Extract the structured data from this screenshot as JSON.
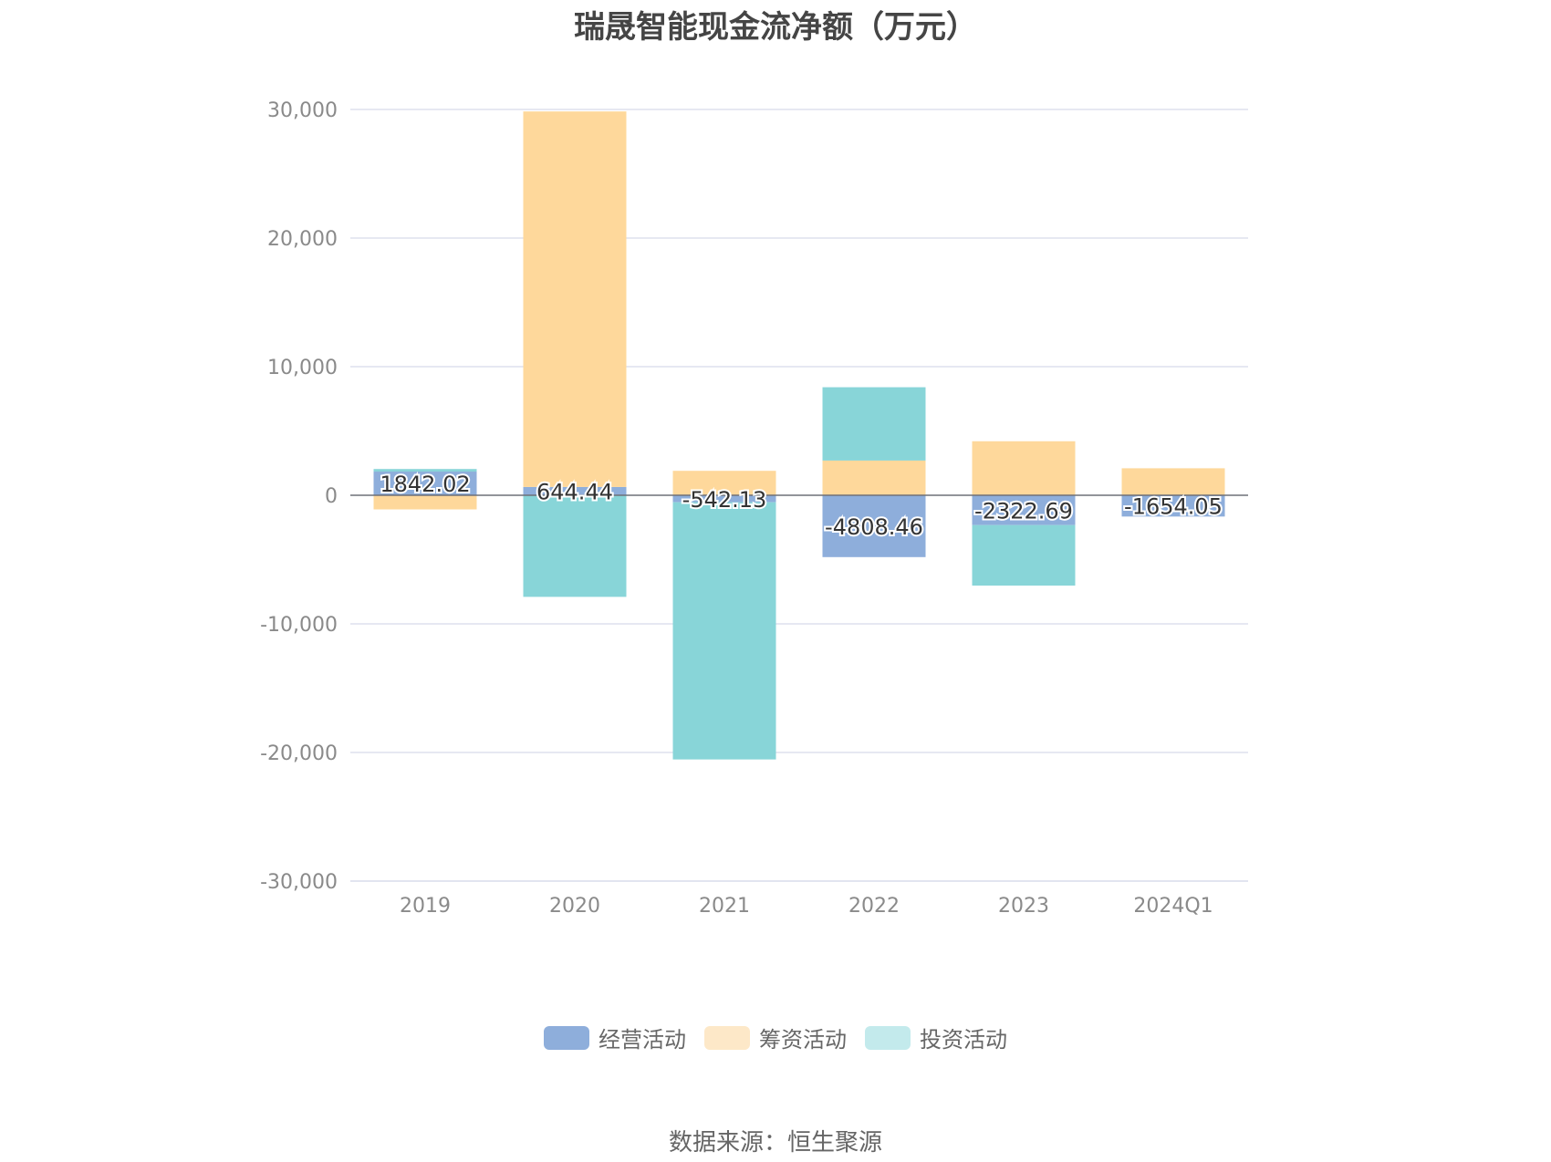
{
  "chart_data": {
    "type": "bar",
    "stacked": true,
    "title": "瑞晟智能现金流净额（万元）",
    "categories": [
      "2019",
      "2020",
      "2021",
      "2022",
      "2023",
      "2024Q1"
    ],
    "series": [
      {
        "name": "经营活动",
        "color": "#8eaedb",
        "legend_color": "#8eaedb",
        "values": [
          1842.02,
          644.44,
          -542.13,
          -4808.46,
          -2322.69,
          -1654.05
        ],
        "labels": [
          "1842.02",
          "644.44",
          "-542.13",
          "-4808.46",
          "-2322.69",
          "-1654.05"
        ]
      },
      {
        "name": "筹资活动",
        "color": "#fed89b",
        "legend_color": "#fde8c8",
        "values": [
          -1100,
          29200,
          1900,
          2700,
          4200,
          2100
        ]
      },
      {
        "name": "投资活动",
        "color": "#88d5d8",
        "legend_color": "#c3eaec",
        "values": [
          200,
          -7900,
          -20000,
          5700,
          -4700,
          0
        ]
      }
    ],
    "ylim": [
      -30000,
      30000
    ],
    "yticks": [
      30000,
      20000,
      10000,
      0,
      -10000,
      -20000,
      -30000
    ],
    "ytick_labels": [
      "30,000",
      "20,000",
      "10,000",
      "0",
      "-10,000",
      "-20,000",
      "-30,000"
    ],
    "grid": true,
    "legend_position": "bottom"
  },
  "source_note": "数据来源：恒生聚源"
}
